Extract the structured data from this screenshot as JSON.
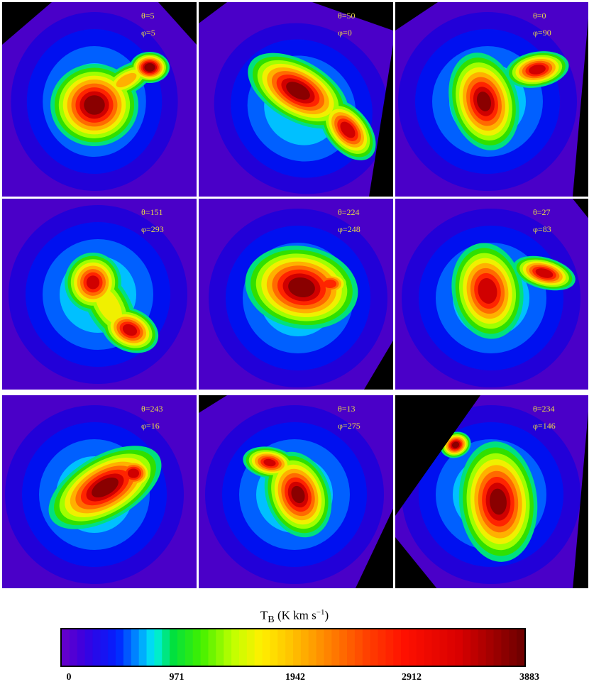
{
  "chart_data": {
    "type": "heatmap",
    "layout": "3x3 grid of integrated intensity maps",
    "panels": [
      {
        "theta": "θ=5",
        "phi": "φ=5",
        "peaks": 2
      },
      {
        "theta": "θ=50",
        "phi": "φ=0",
        "peaks": 2
      },
      {
        "theta": "θ=0",
        "phi": "φ=90",
        "peaks": 2
      },
      {
        "theta": "θ=151",
        "phi": "φ=293",
        "peaks": 2
      },
      {
        "theta": "θ=224",
        "phi": "φ=248",
        "peaks": 1
      },
      {
        "theta": "θ=27",
        "phi": "φ=83",
        "peaks": 2
      },
      {
        "theta": "θ=243",
        "phi": "φ=16",
        "peaks": 1
      },
      {
        "theta": "θ=13",
        "phi": "φ=275",
        "peaks": 2
      },
      {
        "theta": "θ=234",
        "phi": "φ=146",
        "peaks": 2
      }
    ],
    "colorbar": {
      "title": "T",
      "title_sub": "B",
      "title_unit": " (K km s",
      "title_sup": "−1",
      "title_close": ")",
      "min": 0,
      "max": 3883,
      "ticks": [
        "0",
        "971",
        "1942",
        "2912",
        "3883"
      ],
      "colormap": "rainbow (purple → blue → cyan → green → yellow → red → dark red)"
    }
  }
}
